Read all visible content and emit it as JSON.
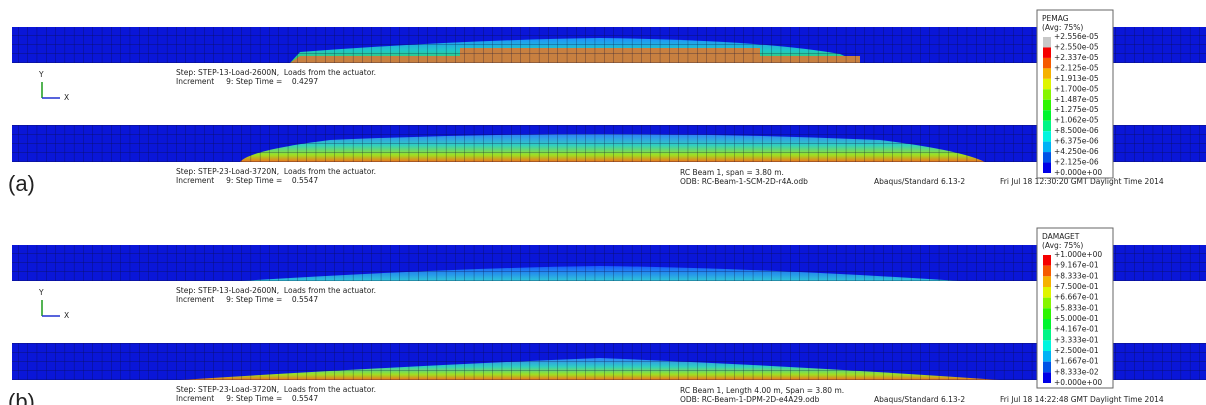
{
  "panels": [
    {
      "label": "(a)",
      "triad": {
        "y": "Y",
        "x": "X"
      },
      "legend": {
        "title": "PEMAG",
        "subtitle": "(Avg: 75%)",
        "labels": [
          "+2.556e-05",
          "+2.550e-05",
          "+2.337e-05",
          "+2.125e-05",
          "+1.913e-05",
          "+1.700e-05",
          "+1.487e-05",
          "+1.275e-05",
          "+1.062e-05",
          "+8.500e-06",
          "+6.375e-06",
          "+4.250e-06",
          "+2.125e-06",
          "+0.000e+00"
        ]
      },
      "steps": [
        {
          "step": "Step: STEP-13-Load-2600N,  Loads from the actuator.",
          "increment": "Increment     9: Step Time =    0.4297"
        },
        {
          "step": "Step: STEP-23-Load-3720N,  Loads from the actuator.",
          "increment": "Increment     9: Step Time =    0.5547"
        }
      ],
      "info": {
        "model": "RC Beam 1, span = 3.80 m.",
        "odb": "ODB: RC-Beam-1-SCM-2D-r4A.odb",
        "solver": "Abaqus/Standard 6.13-2",
        "date": "Fri Jul 18 12:30:20 GMT Daylight Time 2014"
      }
    },
    {
      "label": "(b)",
      "triad": {
        "y": "Y",
        "x": "X"
      },
      "legend": {
        "title": "DAMAGET",
        "subtitle": "(Avg: 75%)",
        "labels": [
          "+1.000e+00",
          "+9.167e-01",
          "+8.333e-01",
          "+7.500e-01",
          "+6.667e-01",
          "+5.833e-01",
          "+5.000e-01",
          "+4.167e-01",
          "+3.333e-01",
          "+2.500e-01",
          "+1.667e-01",
          "+8.333e-02",
          "+0.000e+00"
        ]
      },
      "steps": [
        {
          "step": "Step: STEP-13-Load-2600N,  Loads from the actuator.",
          "increment": "Increment     9: Step Time =    0.5547"
        },
        {
          "step": "Step: STEP-23-Load-3720N,  Loads from the actuator.",
          "increment": "Increment     9: Step Time =    0.5547"
        }
      ],
      "info": {
        "model": "RC Beam 1, Length 4.00 m, Span = 3.80 m.",
        "odb": "ODB: RC-Beam-1-DPM-2D-e4A29.odb",
        "solver": "Abaqus/Standard 6.13-2",
        "date": "Fri Jul 18 14:22:48 GMT Daylight Time 2014"
      }
    }
  ]
}
